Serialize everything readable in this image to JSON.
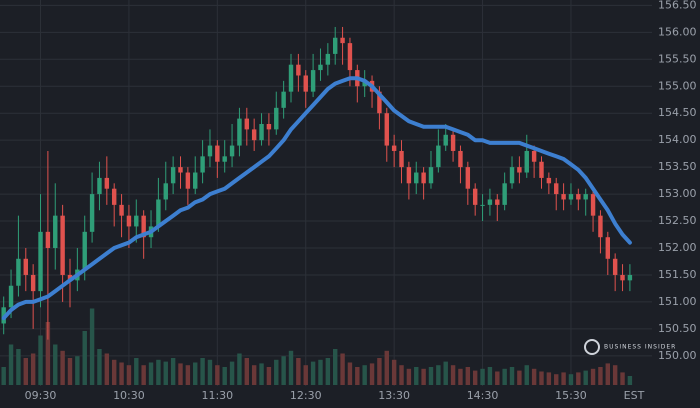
{
  "chart_data": {
    "type": "candlestick",
    "timezone": "EST",
    "watermark": "BUSINESS INSIDER",
    "xlim": [
      -0.5,
      88
    ],
    "xticks": [
      {
        "value": 5,
        "label": "09:30"
      },
      {
        "value": 17,
        "label": "10:30"
      },
      {
        "value": 29,
        "label": "11:30"
      },
      {
        "value": 41,
        "label": "12:30"
      },
      {
        "value": 53,
        "label": "13:30"
      },
      {
        "value": 65,
        "label": "14:30"
      },
      {
        "value": 77,
        "label": "15:30"
      }
    ],
    "ylim": [
      149.7,
      156.6
    ],
    "yticks": [
      {
        "value": 150,
        "label": "150.00"
      },
      {
        "value": 150.5,
        "label": "150.50"
      },
      {
        "value": 151,
        "label": "151.00"
      },
      {
        "value": 151.5,
        "label": "151.50"
      },
      {
        "value": 152,
        "label": "152.00"
      },
      {
        "value": 152.5,
        "label": "152.50"
      },
      {
        "value": 153,
        "label": "153.00"
      },
      {
        "value": 153.5,
        "label": "153.50"
      },
      {
        "value": 154,
        "label": "154.00"
      },
      {
        "value": 154.5,
        "label": "154.50"
      },
      {
        "value": 155,
        "label": "155.00"
      },
      {
        "value": 155.5,
        "label": "155.50"
      },
      {
        "value": 156,
        "label": "156.00"
      },
      {
        "value": 156.5,
        "label": "156.50"
      }
    ],
    "grid": true,
    "up_color": "#2f9e78",
    "down_color": "#e0524e",
    "volume_up_color": "#27554a",
    "volume_down_color": "#6a3838",
    "ma_color": "#3d7fd0",
    "open": [
      150.6,
      150.9,
      151.3,
      151.8,
      151.5,
      151.2,
      152.3,
      152.0,
      152.6,
      151.5,
      151.4,
      151.6,
      152.3,
      153.0,
      153.3,
      153.1,
      152.8,
      152.6,
      152.4,
      152.6,
      152.2,
      152.4,
      152.9,
      153.2,
      153.5,
      153.4,
      153.1,
      153.4,
      153.7,
      153.9,
      153.6,
      153.7,
      153.9,
      154.4,
      154.2,
      154.0,
      154.3,
      154.2,
      154.6,
      154.9,
      155.4,
      155.2,
      154.9,
      155.3,
      155.4,
      155.6,
      155.9,
      155.8,
      155.3,
      155.0,
      155.1,
      154.9,
      154.5,
      153.9,
      153.8,
      153.5,
      153.2,
      153.4,
      153.2,
      153.5,
      153.9,
      154.1,
      153.8,
      153.5,
      153.1,
      152.8,
      152.8,
      152.9,
      152.8,
      153.2,
      153.5,
      153.4,
      153.8,
      153.6,
      153.3,
      153.2,
      153.0,
      152.9,
      153.0,
      152.9,
      153.0,
      152.6,
      152.2,
      151.8,
      151.5,
      151.4
    ],
    "high": [
      151.1,
      151.6,
      152.6,
      152.0,
      151.7,
      153.0,
      153.8,
      153.2,
      152.8,
      151.8,
      152.0,
      152.6,
      153.4,
      153.6,
      153.7,
      153.2,
      153.0,
      152.8,
      152.9,
      152.7,
      152.7,
      153.3,
      153.6,
      153.7,
      153.7,
      153.5,
      153.7,
      154.0,
      154.2,
      154.0,
      154.0,
      154.3,
      154.6,
      154.6,
      154.4,
      154.5,
      154.5,
      154.9,
      155.1,
      155.6,
      155.6,
      155.3,
      155.6,
      155.7,
      155.8,
      156.1,
      156.1,
      155.9,
      155.4,
      155.3,
      155.2,
      155.0,
      154.6,
      154.1,
      154.0,
      153.6,
      153.6,
      153.5,
      153.8,
      154.2,
      154.3,
      154.2,
      153.9,
      153.6,
      153.2,
      153.0,
      153.1,
      153.0,
      153.4,
      153.7,
      153.7,
      154.1,
      153.9,
      153.7,
      153.4,
      153.3,
      153.2,
      153.2,
      153.1,
      153.1,
      153.1,
      152.7,
      152.3,
      151.9,
      151.7,
      151.7
    ],
    "low": [
      150.4,
      150.7,
      151.1,
      151.2,
      150.5,
      150.9,
      150.3,
      151.6,
      151.0,
      150.9,
      151.2,
      151.4,
      152.1,
      152.7,
      152.8,
      152.4,
      152.2,
      152.0,
      152.1,
      151.8,
      152.0,
      152.3,
      152.7,
      153.0,
      153.1,
      152.8,
      153.0,
      153.2,
      153.5,
      153.3,
      153.4,
      153.5,
      153.7,
      153.9,
      153.8,
      153.9,
      153.9,
      154.1,
      154.4,
      154.7,
      154.9,
      154.6,
      154.8,
      155.1,
      155.2,
      155.4,
      155.4,
      155.0,
      154.7,
      154.8,
      154.6,
      154.2,
      153.6,
      153.5,
      153.2,
      152.9,
      153.0,
      152.9,
      153.1,
      153.4,
      153.8,
      153.6,
      153.2,
      152.8,
      152.6,
      152.5,
      152.6,
      152.5,
      152.7,
      153.1,
      153.2,
      153.3,
      153.3,
      153.1,
      153.0,
      152.7,
      152.7,
      152.8,
      152.7,
      152.6,
      152.3,
      151.9,
      151.5,
      151.2,
      151.2,
      151.2
    ],
    "close": [
      150.9,
      151.3,
      151.8,
      151.5,
      151.2,
      152.3,
      152.0,
      152.6,
      151.5,
      151.4,
      151.6,
      152.3,
      153.0,
      153.3,
      153.1,
      152.8,
      152.6,
      152.4,
      152.6,
      152.2,
      152.4,
      152.9,
      153.2,
      153.5,
      153.4,
      153.1,
      153.4,
      153.7,
      153.9,
      153.6,
      153.7,
      153.9,
      154.4,
      154.2,
      154.0,
      154.3,
      154.2,
      154.6,
      154.9,
      155.4,
      155.2,
      154.9,
      155.3,
      155.4,
      155.6,
      155.9,
      155.8,
      155.3,
      155.0,
      155.1,
      154.9,
      154.5,
      153.9,
      153.8,
      153.5,
      153.2,
      153.4,
      153.2,
      153.5,
      153.9,
      154.1,
      153.8,
      153.5,
      153.1,
      152.8,
      152.8,
      152.9,
      152.8,
      153.2,
      153.5,
      153.4,
      153.8,
      153.6,
      153.3,
      153.2,
      153.0,
      152.9,
      153.0,
      152.9,
      153.0,
      152.6,
      152.2,
      151.8,
      151.5,
      151.4,
      151.5
    ],
    "moving_average": [
      150.7,
      150.85,
      150.95,
      151.0,
      151.0,
      151.05,
      151.1,
      151.2,
      151.3,
      151.4,
      151.5,
      151.6,
      151.7,
      151.8,
      151.9,
      152.0,
      152.05,
      152.1,
      152.2,
      152.25,
      152.3,
      152.4,
      152.5,
      152.6,
      152.7,
      152.75,
      152.85,
      152.9,
      153.0,
      153.05,
      153.1,
      153.2,
      153.3,
      153.4,
      153.5,
      153.6,
      153.7,
      153.85,
      154.0,
      154.2,
      154.35,
      154.5,
      154.65,
      154.8,
      154.95,
      155.05,
      155.1,
      155.15,
      155.15,
      155.1,
      155.0,
      154.85,
      154.7,
      154.55,
      154.45,
      154.35,
      154.3,
      154.25,
      154.25,
      154.25,
      154.25,
      154.2,
      154.15,
      154.1,
      154.0,
      154.0,
      153.95,
      153.95,
      153.95,
      153.95,
      153.95,
      153.9,
      153.85,
      153.8,
      153.75,
      153.7,
      153.65,
      153.55,
      153.45,
      153.3,
      153.1,
      152.9,
      152.7,
      152.45,
      152.25,
      152.1
    ],
    "volume_lim": [
      0,
      100
    ],
    "volume": [
      20,
      45,
      40,
      30,
      35,
      55,
      70,
      45,
      38,
      30,
      32,
      60,
      85,
      40,
      35,
      28,
      25,
      22,
      30,
      22,
      25,
      28,
      26,
      30,
      24,
      22,
      25,
      30,
      28,
      22,
      20,
      26,
      35,
      30,
      22,
      24,
      20,
      28,
      32,
      38,
      30,
      22,
      26,
      28,
      30,
      40,
      35,
      25,
      20,
      22,
      24,
      30,
      38,
      28,
      22,
      18,
      20,
      18,
      20,
      22,
      26,
      22,
      18,
      20,
      16,
      18,
      20,
      15,
      18,
      20,
      16,
      22,
      18,
      15,
      14,
      12,
      14,
      12,
      14,
      16,
      18,
      20,
      24,
      22,
      14,
      10
    ]
  }
}
